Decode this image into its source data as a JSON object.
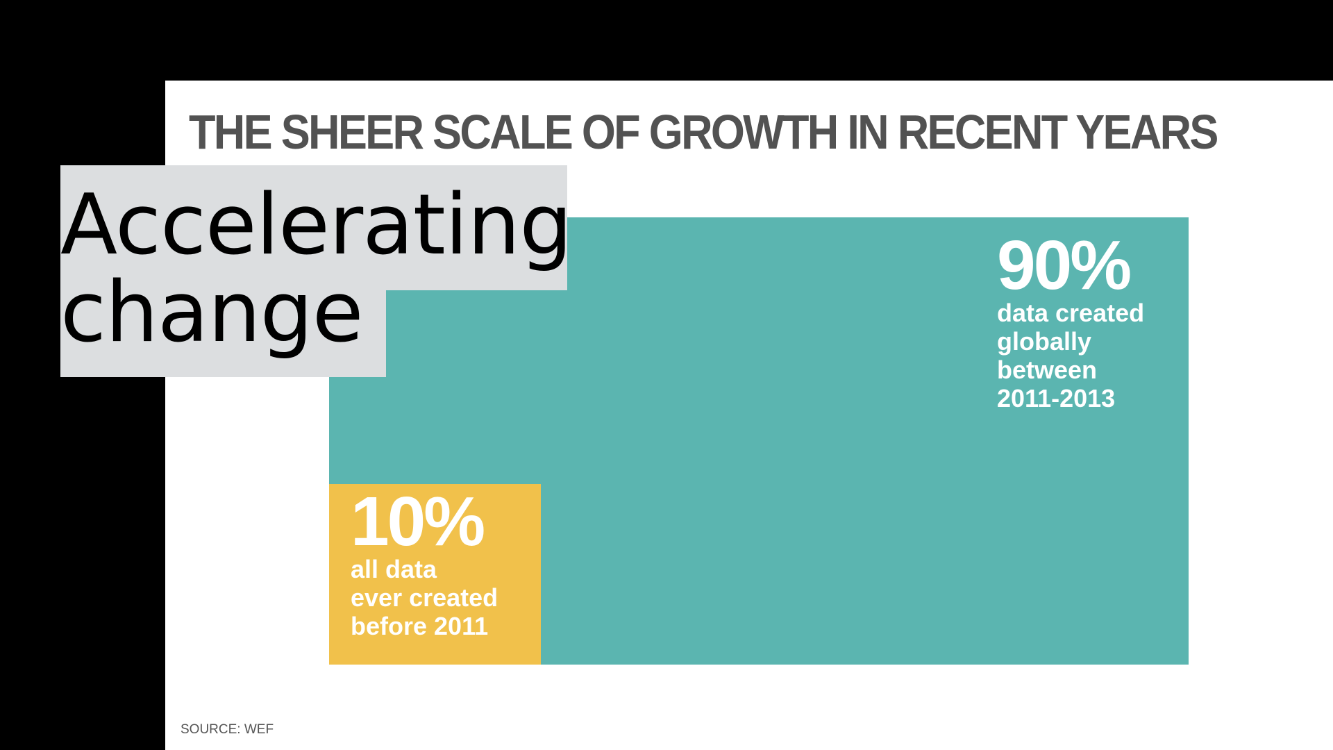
{
  "slide": {
    "heading": "Accelerating change",
    "heading_lines": [
      "Accelerating",
      "change"
    ],
    "background_color": "#000000",
    "overlay_color": "#dcdee0"
  },
  "chart_data": {
    "type": "area",
    "title": "THE SHEER SCALE OF GROWTH IN RECENT YEARS",
    "source": "SOURCE: WEF",
    "segments": [
      {
        "value": 90,
        "value_label": "90%",
        "description": "data created\nglobally\nbetween\n2011-2013",
        "color": "#5bb5b0"
      },
      {
        "value": 10,
        "value_label": "10%",
        "description": "all data\never created\nbefore 2011",
        "color": "#f1c14b"
      }
    ]
  }
}
